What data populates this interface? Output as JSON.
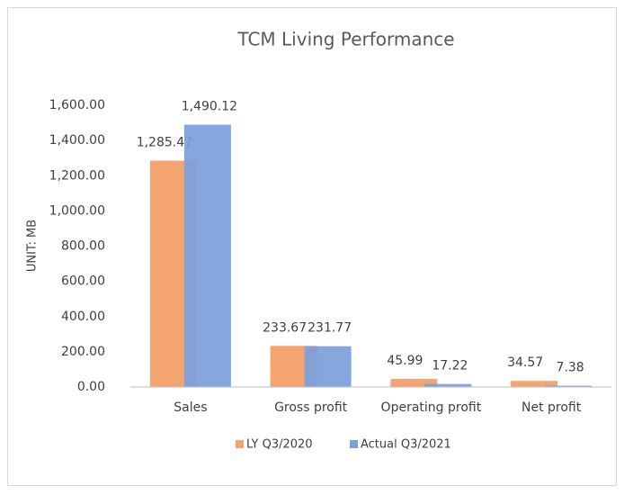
{
  "chart_data": {
    "type": "bar",
    "title": "TCM Living Performance",
    "y_label": "UNIT: MB",
    "categories": [
      "Sales",
      "Gross profit",
      "Operating profit",
      "Net profit"
    ],
    "series": [
      {
        "name": "LY Q3/2020",
        "color": "#f4a46e",
        "values": [
          1285.47,
          233.67,
          45.99,
          34.57
        ],
        "value_labels": [
          "1,285.47",
          "233.67",
          "45.99",
          "34.57"
        ]
      },
      {
        "name": "Actual Q3/2021",
        "color": "#7b9fdb",
        "values": [
          1490.12,
          231.77,
          17.22,
          7.38
        ],
        "value_labels": [
          "1,490.12",
          "231.77",
          "17.22",
          "7.38"
        ]
      }
    ],
    "ylim": [
      0,
      1600
    ],
    "yticks": [
      {
        "value": 0,
        "label": "0.00"
      },
      {
        "value": 200,
        "label": "200.00"
      },
      {
        "value": 400,
        "label": "400.00"
      },
      {
        "value": 600,
        "label": "600.00"
      },
      {
        "value": 800,
        "label": "800.00"
      },
      {
        "value": 1000,
        "label": "1,000.00"
      },
      {
        "value": 1200,
        "label": "1,200.00"
      },
      {
        "value": 1400,
        "label": "1,400.00"
      },
      {
        "value": 1600,
        "label": "1,600.00"
      }
    ],
    "grid": false,
    "legend": "bottom"
  }
}
